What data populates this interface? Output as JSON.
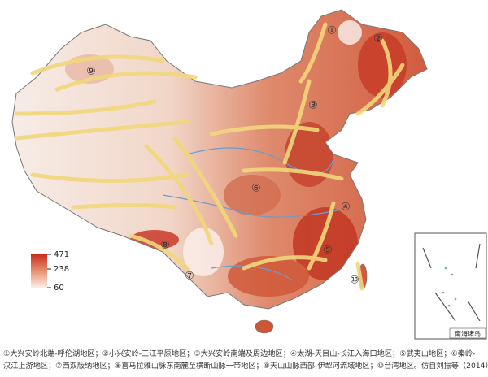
{
  "map": {
    "region_labels": [
      "①",
      "②",
      "③",
      "④",
      "⑤",
      "⑥",
      "⑦",
      "⑧",
      "⑨",
      "⑩"
    ],
    "legend": {
      "max": 471,
      "mid": 238,
      "min": 60
    },
    "inset_label": "南海诸岛",
    "caption": [
      "①大兴安岭北端-呼伦湖地区；②小兴安岭-三江平原地区；③大兴安岭南端及周边地区；④太湖-天目山-长江入海口地区；⑤武夷山地区；⑥秦岭-",
      "汉江上游地区；⑦西双版纳地区；⑧喜马拉雅山脉东南麓至横断山脉一带地区；⑨天山山脉西部-伊犁河流域地区；⑩台湾地区。仿自刘振等（2014）"
    ]
  }
}
